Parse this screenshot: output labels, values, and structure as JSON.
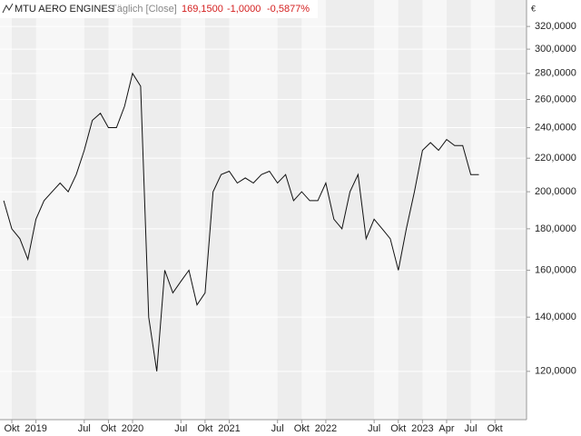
{
  "chart_data": {
    "type": "line",
    "title": "MTU AERO ENGINES",
    "subtitle": "Täglich [Close]",
    "quote": [
      "169,1500",
      "-1,0000",
      "-0,5877%"
    ],
    "quote_color": "#d42020",
    "y_unit": "€",
    "log_scale": true,
    "grid": true,
    "categories": [
      null,
      "Okt",
      null,
      null,
      "2019",
      null,
      null,
      null,
      null,
      null,
      "Jul",
      null,
      null,
      "Okt",
      null,
      null,
      "2020",
      null,
      null,
      null,
      null,
      null,
      "Jul",
      null,
      null,
      "Okt",
      null,
      null,
      "2021",
      null,
      null,
      null,
      null,
      null,
      "Jul",
      null,
      null,
      "Okt",
      null,
      null,
      "2022",
      null,
      null,
      null,
      null,
      null,
      "Jul",
      null,
      null,
      "Okt",
      null,
      null,
      "2023",
      null,
      null,
      "Apr",
      null,
      null,
      "Jul",
      null,
      null,
      "Okt",
      null,
      null,
      null
    ],
    "series": [
      {
        "name": "MTU AERO ENGINES",
        "color": "#111111",
        "values": [
          195,
          180,
          175,
          165,
          185,
          195,
          200,
          205,
          200,
          210,
          225,
          245,
          250,
          240,
          240,
          255,
          280,
          270,
          140,
          120,
          160,
          150,
          155,
          160,
          145,
          150,
          200,
          210,
          212,
          205,
          208,
          205,
          210,
          212,
          205,
          210,
          195,
          200,
          195,
          195,
          205,
          185,
          180,
          200,
          210,
          175,
          185,
          180,
          175,
          160,
          180,
          200,
          225,
          230,
          225,
          232,
          228,
          228,
          210,
          210,
          null,
          null,
          null,
          null,
          null
        ]
      }
    ],
    "ylim": [
      104.6,
      345
    ],
    "yticks": [
      {
        "value": 120,
        "label": "120,0000"
      },
      {
        "value": 140,
        "label": "140,0000"
      },
      {
        "value": 160,
        "label": "160,0000"
      },
      {
        "value": 180,
        "label": "180,0000"
      },
      {
        "value": 200,
        "label": "200,0000"
      },
      {
        "value": 220,
        "label": "220,0000"
      },
      {
        "value": 240,
        "label": "240,0000"
      },
      {
        "value": 260,
        "label": "260,0000"
      },
      {
        "value": 280,
        "label": "280,0000"
      },
      {
        "value": 300,
        "label": "300,0000"
      },
      {
        "value": 320,
        "label": "320,0000"
      }
    ]
  }
}
